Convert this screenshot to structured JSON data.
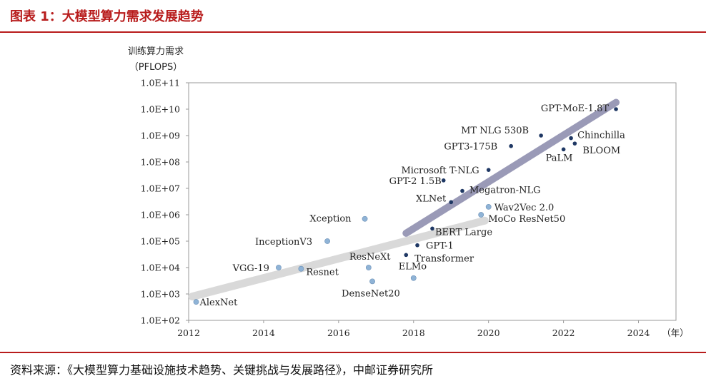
{
  "header": {
    "title": "图表 1：大模型算力需求发展趋势"
  },
  "footer": {
    "source": "资料来源：《大模型算力基础设施技术趋势、关键挑战与发展路径》，中邮证券研究所"
  },
  "colors": {
    "accent": "#b81c1c",
    "dark_point": "#1f3864",
    "light_point": "#8fb3d6",
    "light_trend": "#d9d9d9",
    "dark_trend": "#9a9ab7"
  },
  "chart_data": {
    "type": "scatter",
    "ylabel_line1": "训练算力需求",
    "ylabel_line2": "（PFLOPS）",
    "xlabel": "（年）",
    "y_scale": "log",
    "xlim": [
      2012,
      2025
    ],
    "ylim": [
      100,
      100000000000.0
    ],
    "x_ticks": [
      2012,
      2014,
      2016,
      2018,
      2020,
      2022,
      2024
    ],
    "y_ticks": [
      "1.0E+02",
      "1.0E+03",
      "1.0E+04",
      "1.0E+05",
      "1.0E+06",
      "1.0E+07",
      "1.0E+08",
      "1.0E+09",
      "1.0E+10",
      "1.0E+11"
    ],
    "grid": false,
    "trend_lines": [
      {
        "x": [
          2012.1,
          2019.9
        ],
        "y": [
          800,
          600000
        ],
        "style": "light"
      },
      {
        "x": [
          2017.8,
          2023.4
        ],
        "y": [
          200000,
          18000000000.0
        ],
        "style": "dark"
      }
    ],
    "points": [
      {
        "label": "AlexNet",
        "x": 2012.2,
        "y": 500,
        "group": "light"
      },
      {
        "label": "VGG-19",
        "x": 2014.4,
        "y": 10000,
        "group": "light"
      },
      {
        "label": "Resnet",
        "x": 2015.0,
        "y": 9000,
        "group": "light"
      },
      {
        "label": "InceptionV3",
        "x": 2015.7,
        "y": 100000,
        "group": "light"
      },
      {
        "label": "Xception",
        "x": 2016.7,
        "y": 700000,
        "group": "light"
      },
      {
        "label": "ResNeXt",
        "x": 2016.8,
        "y": 10000,
        "group": "light"
      },
      {
        "label": "DenseNet20",
        "x": 2016.9,
        "y": 3000,
        "group": "light"
      },
      {
        "label": "ELMo",
        "x": 2018.0,
        "y": 4000,
        "group": "light"
      },
      {
        "label": "Transformer",
        "x": 2017.8,
        "y": 30000,
        "group": "dark"
      },
      {
        "label": "GPT-1",
        "x": 2018.1,
        "y": 70000,
        "group": "dark"
      },
      {
        "label": "BERT Large",
        "x": 2018.5,
        "y": 300000,
        "group": "dark"
      },
      {
        "label": "MoCo ResNet50",
        "x": 2019.8,
        "y": 1000000,
        "group": "light"
      },
      {
        "label": "Wav2Vec 2.0",
        "x": 2020.0,
        "y": 2000000,
        "group": "light"
      },
      {
        "label": "XLNet",
        "x": 2019.0,
        "y": 3000000,
        "group": "dark"
      },
      {
        "label": "Megatron-NLG",
        "x": 2019.3,
        "y": 8000000,
        "group": "dark"
      },
      {
        "label": "GPT-2 1.5B",
        "x": 2018.8,
        "y": 20000000,
        "group": "dark"
      },
      {
        "label": "Microsoft T-NLG",
        "x": 2020.0,
        "y": 50000000,
        "group": "dark"
      },
      {
        "label": "GPT3-175B",
        "x": 2020.6,
        "y": 400000000,
        "group": "dark"
      },
      {
        "label": "MT NLG 530B",
        "x": 2021.4,
        "y": 1000000000,
        "group": "dark"
      },
      {
        "label": "Chinchilla",
        "x": 2022.2,
        "y": 800000000,
        "group": "dark"
      },
      {
        "label": "PaLM",
        "x": 2022.0,
        "y": 300000000,
        "group": "dark"
      },
      {
        "label": "BLOOM",
        "x": 2022.3,
        "y": 500000000,
        "group": "dark"
      },
      {
        "label": "GPT-MoE-1.8T",
        "x": 2023.4,
        "y": 10000000000,
        "group": "dark"
      }
    ]
  }
}
